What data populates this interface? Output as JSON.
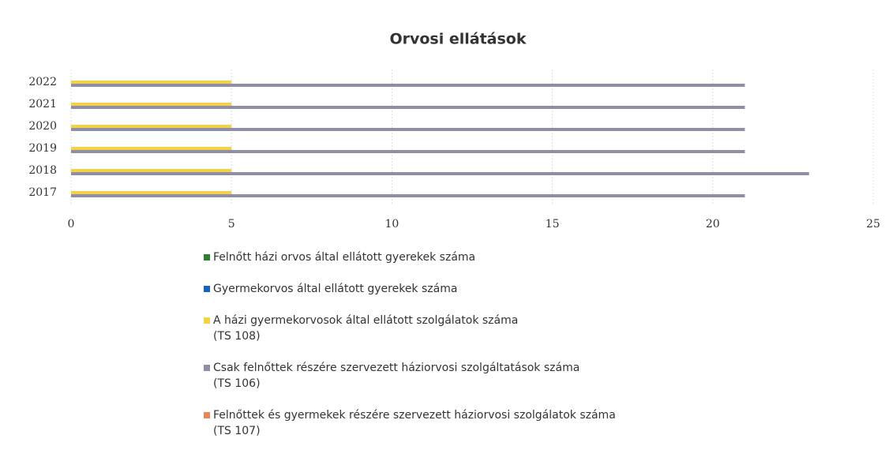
{
  "chart_data": {
    "type": "hbar",
    "title": "Orvosi ellátások",
    "categories": [
      "2022",
      "2021",
      "2020",
      "2019",
      "2018",
      "2017"
    ],
    "series": [
      {
        "name": "Felnőtt házi orvos által ellátott gyerekek száma",
        "color": "#2e7d32",
        "values": [
          0,
          0,
          0,
          0,
          0,
          0
        ]
      },
      {
        "name": "Gyermekorvos által ellátott gyerekek száma",
        "color": "#1565c0",
        "values": [
          0,
          0,
          0,
          0,
          0,
          0
        ]
      },
      {
        "name": "A házi gyermekorvosok által ellátott szolgálatok száma\n(TS 108)",
        "color": "#f2d24b",
        "values": [
          5,
          5,
          5,
          5,
          5,
          5
        ]
      },
      {
        "name": "Csak felnőttek részére szervezett háziorvosi szolgáltatások száma\n(TS 106)",
        "color": "#8e8fa3",
        "values": [
          21,
          21,
          21,
          21,
          23,
          21
        ]
      },
      {
        "name": "Felnőttek és gyermekek részére szervezett háziorvosi szolgálatok száma\n(TS 107)",
        "color": "#e8855a",
        "values": [
          0,
          0,
          0,
          0,
          0,
          0
        ]
      }
    ],
    "xlim": [
      0,
      25
    ],
    "xticks": [
      0,
      5,
      10,
      15,
      20,
      25
    ],
    "grid": true
  }
}
